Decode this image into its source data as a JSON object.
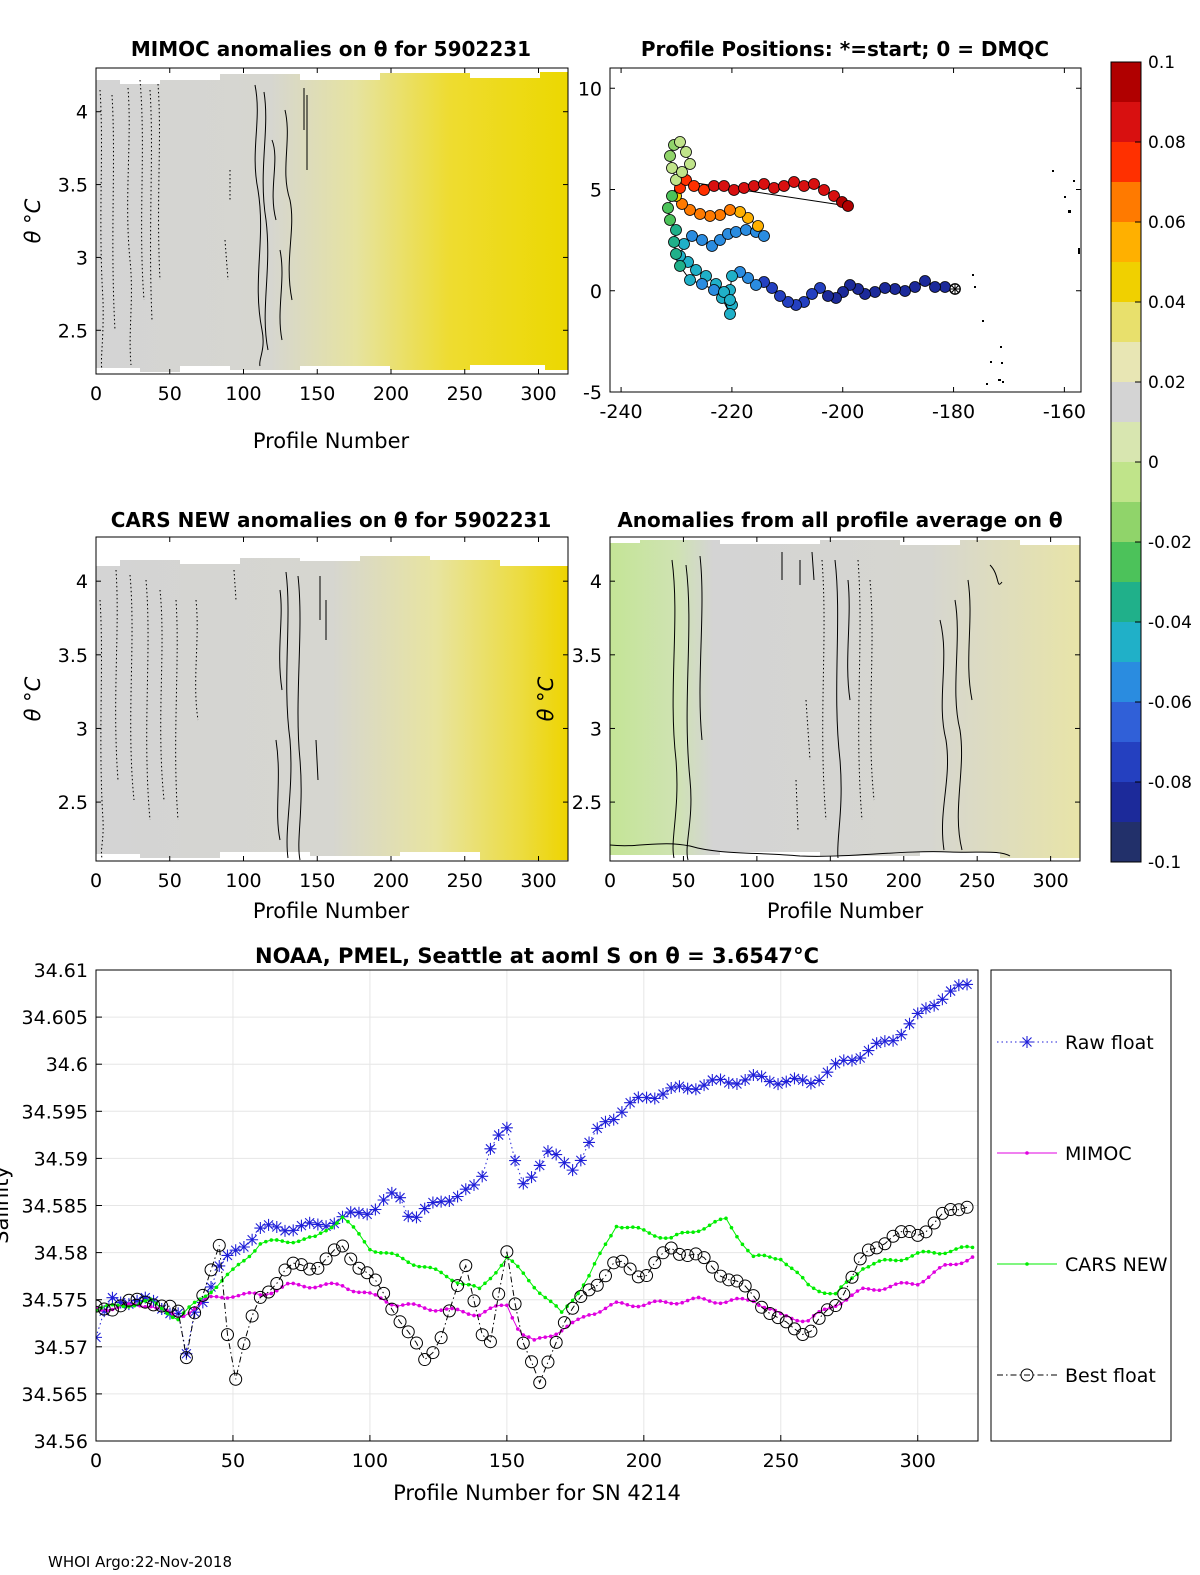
{
  "figure": {
    "footer": "WHOI Argo:22-Nov-2018"
  },
  "colors": {
    "gray": "#d4d4d4",
    "yellow": "#e8d500",
    "green": "#c4e496",
    "raw": "#1f1fd8",
    "mimoc": "#e000e0",
    "cars": "#00ee00",
    "best": "#000000"
  },
  "colorbar": {
    "ticks": [
      "0.1",
      "0.08",
      "0.06",
      "0.04",
      "0.02",
      "0",
      "-0.02",
      "-0.04",
      "-0.06",
      "-0.08",
      "-0.1"
    ],
    "colors": [
      "#b00000",
      "#d81010",
      "#ff3000",
      "#ff7a00",
      "#ffb000",
      "#f0d000",
      "#e8e06c",
      "#e8e6b4",
      "#d4d4d4",
      "#d8e6b0",
      "#c0e48a",
      "#90d46a",
      "#4cc25a",
      "#20b08a",
      "#20b0c8",
      "#2a8ce0",
      "#3060d8",
      "#2440c0",
      "#1c2a9a",
      "#22306a"
    ]
  },
  "chart_data": [
    {
      "type": "heatmap",
      "title": "MIMOC anomalies on θ  for 5902231",
      "xlabel": "Profile Number",
      "ylabel": "θ °C",
      "xlim": [
        0,
        320
      ],
      "ylim": [
        2.2,
        4.3
      ],
      "x_ticks": [
        "0",
        "50",
        "100",
        "150",
        "200",
        "250",
        "300"
      ],
      "y_ticks": [
        "2.5",
        "3",
        "3.5",
        "4"
      ],
      "trend": "gray (~0) for profiles 0-120 rising to yellow (~+0.03) toward 320"
    },
    {
      "type": "scatter",
      "title": "Profile Positions: *=start; 0 = DMQC",
      "x_ticks": [
        "-240",
        "-220",
        "-200",
        "-180",
        "-160"
      ],
      "y_ticks": [
        "-5",
        "0",
        "5",
        "10"
      ],
      "xlim": [
        -242,
        -157
      ],
      "ylim": [
        -5,
        11
      ]
    },
    {
      "type": "heatmap",
      "title": "CARS NEW anomalies on θ for 5902231",
      "xlabel": "Profile Number",
      "ylabel": "θ °C",
      "xlim": [
        0,
        320
      ],
      "ylim": [
        2.1,
        4.3
      ],
      "x_ticks": [
        "0",
        "50",
        "100",
        "150",
        "200",
        "250",
        "300"
      ],
      "y_ticks": [
        "2.5",
        "3",
        "3.5",
        "4"
      ],
      "trend": "gray for profiles 0-200 rising to yellow (~+0.03) toward 320"
    },
    {
      "type": "heatmap",
      "title": "Anomalies from all profile average on θ",
      "xlabel": "Profile Number",
      "ylabel": "θ °C",
      "xlim": [
        0,
        320
      ],
      "ylim": [
        2.1,
        4.3
      ],
      "x_ticks": [
        "0",
        "50",
        "100",
        "150",
        "200",
        "250",
        "300"
      ],
      "y_ticks": [
        "2.5",
        "3",
        "3.5",
        "4"
      ],
      "trend": "light green (~-0.01) for profiles 0-60, gray in the middle, light yellow toward 320"
    },
    {
      "type": "line",
      "title_prefix": "NOAA, PMEL, Seattle at aoml S on θ = 3.6547",
      "title_unit": "°C",
      "xlabel": "Profile Number for SN 4214",
      "ylabel": "Salinity",
      "xlim": [
        0,
        322
      ],
      "ylim": [
        34.56,
        34.61
      ],
      "x_ticks": [
        "0",
        "50",
        "100",
        "150",
        "200",
        "250",
        "300"
      ],
      "y_ticks": [
        "34.56",
        "34.565",
        "34.57",
        "34.575",
        "34.58",
        "34.585",
        "34.59",
        "34.595",
        "34.6",
        "34.605",
        "34.61"
      ],
      "grid": true,
      "legend": "right",
      "series": [
        {
          "name": "Raw float",
          "marker": "*",
          "line": "dotted",
          "knots": [
            [
              0,
              34.571
            ],
            [
              5,
              34.575
            ],
            [
              20,
              34.5748
            ],
            [
              30,
              34.5735
            ],
            [
              32,
              34.5668
            ],
            [
              35,
              34.573
            ],
            [
              40,
              34.5755
            ],
            [
              45,
              34.5785
            ],
            [
              60,
              34.5825
            ],
            [
              80,
              34.5828
            ],
            [
              100,
              34.5845
            ],
            [
              110,
              34.5863
            ],
            [
              115,
              34.5837
            ],
            [
              130,
              34.586
            ],
            [
              140,
              34.587
            ],
            [
              145,
              34.5925
            ],
            [
              150,
              34.593
            ],
            [
              155,
              34.587
            ],
            [
              165,
              34.5905
            ],
            [
              175,
              34.589
            ],
            [
              185,
              34.5938
            ],
            [
              200,
              34.5965
            ],
            [
              220,
              34.5978
            ],
            [
              240,
              34.5985
            ],
            [
              260,
              34.598
            ],
            [
              275,
              34.6005
            ],
            [
              290,
              34.6025
            ],
            [
              310,
              34.6075
            ],
            [
              320,
              34.6085
            ]
          ]
        },
        {
          "name": "MIMOC",
          "marker": ".",
          "line": "solid",
          "knots": [
            [
              0,
              34.574
            ],
            [
              20,
              34.5745
            ],
            [
              30,
              34.573
            ],
            [
              40,
              34.575
            ],
            [
              50,
              34.5755
            ],
            [
              60,
              34.5755
            ],
            [
              70,
              34.5765
            ],
            [
              90,
              34.5765
            ],
            [
              110,
              34.5745
            ],
            [
              140,
              34.5735
            ],
            [
              150,
              34.5745
            ],
            [
              155,
              34.5715
            ],
            [
              160,
              34.5705
            ],
            [
              175,
              34.5725
            ],
            [
              180,
              34.5735
            ],
            [
              190,
              34.5745
            ],
            [
              200,
              34.5745
            ],
            [
              220,
              34.575
            ],
            [
              230,
              34.5748
            ],
            [
              240,
              34.575
            ],
            [
              250,
              34.5733
            ],
            [
              260,
              34.5728
            ],
            [
              270,
              34.5745
            ],
            [
              280,
              34.576
            ],
            [
              300,
              34.5768
            ],
            [
              310,
              34.5785
            ],
            [
              320,
              34.5795
            ]
          ]
        },
        {
          "name": "CARS NEW",
          "marker": ".",
          "line": "solid",
          "knots": [
            [
              0,
              34.574
            ],
            [
              20,
              34.5748
            ],
            [
              30,
              34.573
            ],
            [
              40,
              34.5755
            ],
            [
              50,
              34.578
            ],
            [
              60,
              34.581
            ],
            [
              80,
              34.5815
            ],
            [
              90,
              34.5838
            ],
            [
              100,
              34.5805
            ],
            [
              120,
              34.5785
            ],
            [
              140,
              34.576
            ],
            [
              150,
              34.5795
            ],
            [
              160,
              34.5765
            ],
            [
              170,
              34.5735
            ],
            [
              180,
              34.5775
            ],
            [
              190,
              34.583
            ],
            [
              210,
              34.5815
            ],
            [
              230,
              34.5835
            ],
            [
              240,
              34.5795
            ],
            [
              250,
              34.5795
            ],
            [
              260,
              34.5765
            ],
            [
              270,
              34.5755
            ],
            [
              280,
              34.5785
            ],
            [
              300,
              34.5798
            ],
            [
              320,
              34.5805
            ]
          ]
        },
        {
          "name": "Best float",
          "marker": "o",
          "line": "dashdot",
          "knots": [
            [
              0,
              34.574
            ],
            [
              20,
              34.575
            ],
            [
              30,
              34.5735
            ],
            [
              32,
              34.5668
            ],
            [
              35,
              34.5735
            ],
            [
              40,
              34.576
            ],
            [
              45,
              34.5805
            ],
            [
              48,
              34.5715
            ],
            [
              50,
              34.5658
            ],
            [
              55,
              34.5715
            ],
            [
              60,
              34.575
            ],
            [
              70,
              34.5785
            ],
            [
              80,
              34.5785
            ],
            [
              90,
              34.5805
            ],
            [
              100,
              34.5775
            ],
            [
              110,
              34.5735
            ],
            [
              120,
              34.5685
            ],
            [
              125,
              34.5705
            ],
            [
              135,
              34.5785
            ],
            [
              140,
              34.573
            ],
            [
              143,
              34.5688
            ],
            [
              150,
              34.58
            ],
            [
              155,
              34.5715
            ],
            [
              162,
              34.5658
            ],
            [
              170,
              34.5725
            ],
            [
              180,
              34.576
            ],
            [
              190,
              34.579
            ],
            [
              200,
              34.5775
            ],
            [
              210,
              34.5805
            ],
            [
              220,
              34.5795
            ],
            [
              230,
              34.5775
            ],
            [
              240,
              34.5755
            ],
            [
              250,
              34.5725
            ],
            [
              260,
              34.5715
            ],
            [
              270,
              34.5745
            ],
            [
              280,
              34.5795
            ],
            [
              290,
              34.5818
            ],
            [
              300,
              34.582
            ],
            [
              310,
              34.584
            ],
            [
              320,
              34.5855
            ]
          ]
        }
      ]
    }
  ]
}
